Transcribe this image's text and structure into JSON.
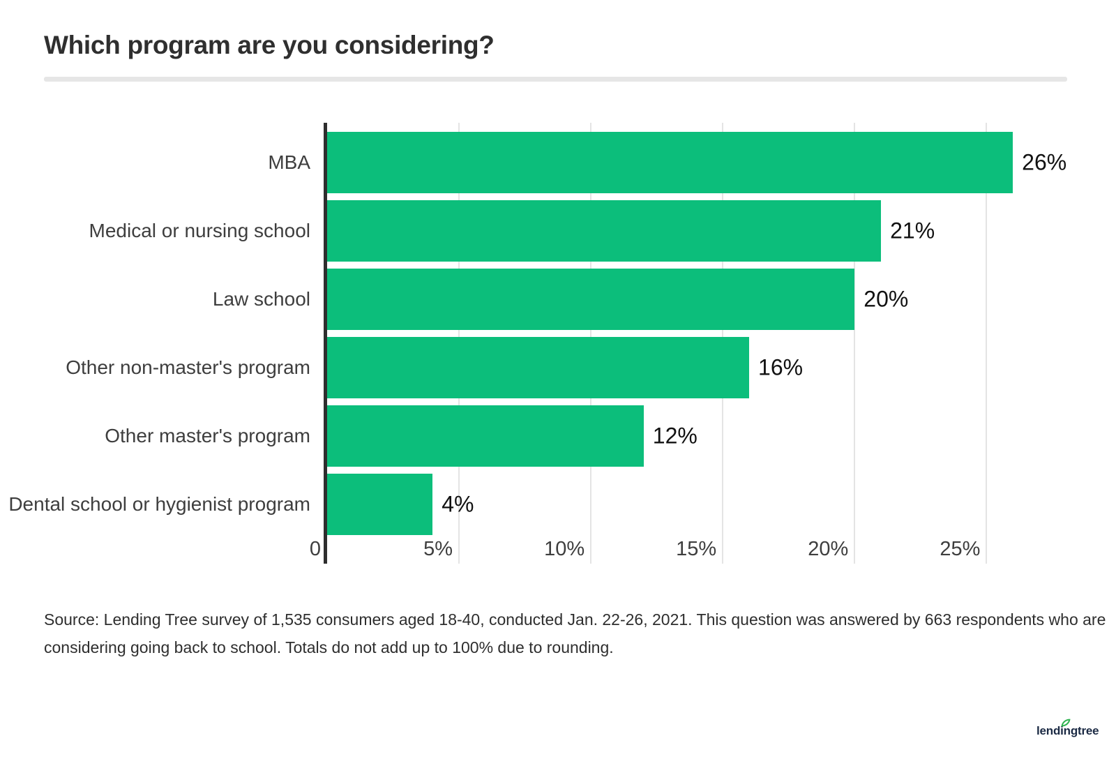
{
  "header": {
    "title": "Which program are you considering?"
  },
  "chart_data": {
    "type": "bar",
    "orientation": "horizontal",
    "title": "Which program are you considering?",
    "categories": [
      "MBA",
      "Medical or nursing school",
      "Law school",
      "Other non-master's program",
      "Other master's program",
      "Dental school or hygienist program"
    ],
    "values": [
      26,
      21,
      20,
      16,
      12,
      4
    ],
    "value_labels": [
      "26%",
      "21%",
      "20%",
      "16%",
      "12%",
      "4%"
    ],
    "x_tick_labels": [
      "0",
      "5%",
      "10%",
      "15%",
      "20%",
      "25%"
    ],
    "x_tick_values": [
      0,
      5,
      10,
      15,
      20,
      25
    ],
    "xlim": [
      0,
      27
    ],
    "grid": true,
    "legend": false,
    "bar_color": "#0cbe7b",
    "axis_color": "#2e2e2e",
    "grid_color": "#e4e4e4",
    "label_color": "#3e3e3e",
    "value_label_color": "#111111"
  },
  "source": {
    "lines": [
      "Source: Lending Tree survey of 1,535 consumers aged 18-40, conducted Jan. 22-26, 2021. This question was answered by 663 respondents who are",
      "considering going back to school. Totals do not add up to 100% due to rounding."
    ]
  },
  "branding": {
    "logo_text": "lendingtree",
    "logo_color": "#1b2a44",
    "leaf_color": "#2eb34f"
  }
}
